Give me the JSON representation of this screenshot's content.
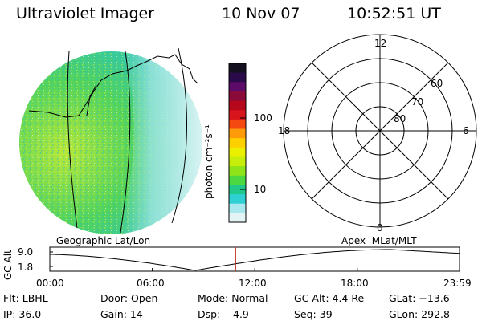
{
  "header": {
    "title": "Ultraviolet Imager",
    "date": "10 Nov 07",
    "time": "10:52:51 UT"
  },
  "colorbar": {
    "unit_label": "photon cm⁻²s⁻¹",
    "ticks": [
      "100",
      "10"
    ],
    "colors": [
      "#151020",
      "#2a0a48",
      "#5c0b68",
      "#8a0a3a",
      "#b5081a",
      "#d8141c",
      "#f44a12",
      "#ff9a0a",
      "#ffd000",
      "#eaf000",
      "#c6ee0a",
      "#8ee418",
      "#4cd840",
      "#20c88a",
      "#2ed0d2",
      "#a8e8ee",
      "#e2f4f4"
    ]
  },
  "geo_panel": {
    "label": "Geographic Lat/Lon"
  },
  "polar_panel": {
    "label": "Apex  MLat/MLT",
    "mlt_labels": {
      "top": "12",
      "left": "18",
      "right": "6",
      "bottom": "0"
    },
    "mlat_labels": [
      "60",
      "70",
      "80"
    ]
  },
  "timeline": {
    "ylabel": "GC Alt",
    "yticks": [
      "9.0",
      "1.8"
    ],
    "xticks": [
      "00:00",
      "06:00",
      "12:00",
      "18:00",
      "23:59"
    ],
    "current_time_hours": 10.88
  },
  "info": {
    "flt": "Flt: LBHL",
    "ip": "IP: 36.0",
    "door": "Door: Open",
    "gain": "Gain: 14",
    "mode": "Mode: Normal",
    "dsp_label": "Dsp:",
    "dsp_value": "4.9",
    "gc_alt": "GC Alt: 4.4 Re",
    "seq": "Seq: 39",
    "glat": "GLat: −13.6",
    "glon": "GLon: 292.8"
  }
}
